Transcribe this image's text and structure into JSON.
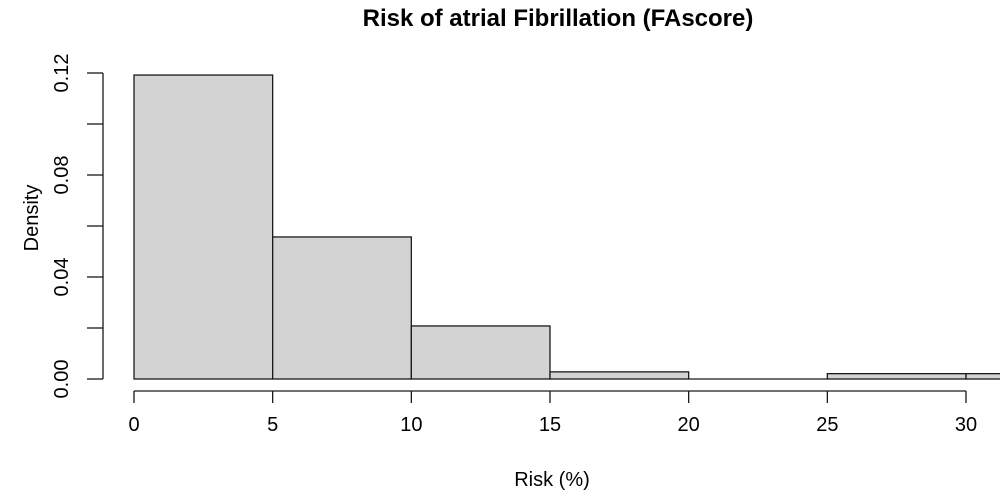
{
  "chart_data": {
    "type": "bar",
    "subtype": "histogram",
    "title": "Risk of atrial Fibrillation (FAscore)",
    "xlabel": "Risk (%)",
    "ylabel": "Density",
    "bin_width": 5,
    "bins": [
      {
        "range": [
          0,
          5
        ],
        "density": 0.1192
      },
      {
        "range": [
          5,
          10
        ],
        "density": 0.0557
      },
      {
        "range": [
          10,
          15
        ],
        "density": 0.0208
      },
      {
        "range": [
          15,
          20
        ],
        "density": 0.0028
      },
      {
        "range": [
          20,
          25
        ],
        "density": 0.0
      },
      {
        "range": [
          25,
          30
        ],
        "density": 0.0021
      },
      {
        "range": [
          30,
          35
        ],
        "density": 0.0021,
        "clipped_at_right_edge": true
      }
    ],
    "x_ticks": [
      {
        "value": 0,
        "label": "0"
      },
      {
        "value": 5,
        "label": "5"
      },
      {
        "value": 10,
        "label": "10"
      },
      {
        "value": 15,
        "label": "15"
      },
      {
        "value": 20,
        "label": "20"
      },
      {
        "value": 25,
        "label": "25"
      },
      {
        "value": 30,
        "label": "30"
      }
    ],
    "y_ticks": [
      {
        "value": 0.0,
        "label": "0.00"
      },
      {
        "value": 0.02,
        "label": ""
      },
      {
        "value": 0.04,
        "label": "0.04"
      },
      {
        "value": 0.06,
        "label": ""
      },
      {
        "value": 0.08,
        "label": "0.08"
      },
      {
        "value": 0.1,
        "label": ""
      },
      {
        "value": 0.12,
        "label": "0.12"
      }
    ],
    "xlim": [
      0,
      31.2
    ],
    "ylim": [
      0,
      0.12
    ],
    "grid": false,
    "legend": false,
    "colors": {
      "bar_fill": "#d3d3d3",
      "bar_stroke": "#1a1a1a",
      "axis": "#1a1a1a",
      "text": "#000000",
      "background": "#ffffff"
    }
  }
}
